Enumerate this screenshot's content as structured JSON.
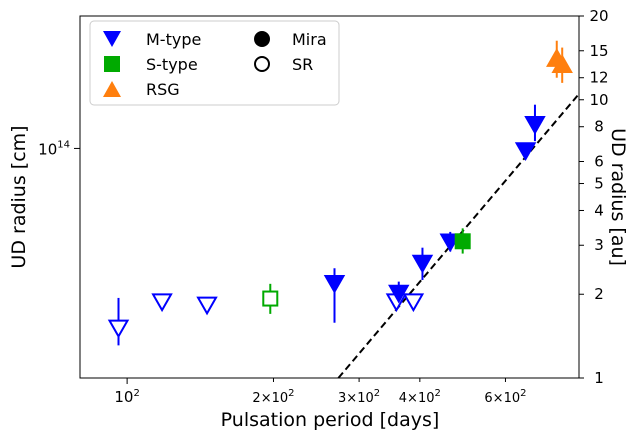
{
  "chart_data": {
    "type": "scatter",
    "xlabel": "Pulsation period [days]",
    "ylabel": "UD radius [cm]",
    "ylabel_right": "UD radius [au]",
    "x_scale": "log",
    "y_scale": "log",
    "xlim": [
      80,
      850
    ],
    "ylim_cm": [
      15000000000000.0,
      280000000000000.0
    ],
    "ylim_au": [
      1,
      20
    ],
    "au_in_cm": 14960000000000.0,
    "x_ticks": [
      {
        "value": 100,
        "base": "10",
        "exp": "2",
        "coef": ""
      },
      {
        "value": 200,
        "base": "10",
        "exp": "2",
        "coef": "2×"
      },
      {
        "value": 300,
        "base": "10",
        "exp": "2",
        "coef": "3×"
      },
      {
        "value": 400,
        "base": "10",
        "exp": "2",
        "coef": "4×"
      },
      {
        "value": 600,
        "base": "10",
        "exp": "2",
        "coef": "6×"
      }
    ],
    "y_ticks_left": [
      {
        "value": 100000000000000.0,
        "base": "10",
        "exp": "14"
      }
    ],
    "y_ticks_right": [
      {
        "value": 1,
        "label": "1"
      },
      {
        "value": 2,
        "label": "2"
      },
      {
        "value": 3,
        "label": "3"
      },
      {
        "value": 4,
        "label": "4"
      },
      {
        "value": 5,
        "label": "5"
      },
      {
        "value": 6,
        "label": "6"
      },
      {
        "value": 8,
        "label": "8"
      },
      {
        "value": 10,
        "label": "10"
      },
      {
        "value": 12,
        "label": "12"
      },
      {
        "value": 15,
        "label": "15"
      },
      {
        "value": 20,
        "label": "20"
      }
    ],
    "fit_line": {
      "style": "dashed",
      "color": "#000000",
      "points": [
        [
          272,
          1.0
        ],
        [
          850,
          10.5
        ]
      ]
    },
    "legend": {
      "position": "top-left",
      "entries": [
        {
          "label": "M-type",
          "marker": "triangle-down",
          "color": "#0000ff",
          "fill": true
        },
        {
          "label": "S-type",
          "marker": "square",
          "color": "#00aa00",
          "fill": true
        },
        {
          "label": "RSG",
          "marker": "triangle-up",
          "color": "#ff7f0e",
          "fill": true
        },
        {
          "label": "Mira",
          "marker": "circle",
          "color": "#000000",
          "fill": true
        },
        {
          "label": "SR",
          "marker": "circle",
          "color": "#000000",
          "fill": false
        }
      ]
    },
    "series": [
      {
        "name": "M-type",
        "marker": "triangle-down",
        "color": "#0000ff",
        "points": [
          {
            "x": 96,
            "y_au": 1.52,
            "err_lo": 1.31,
            "err_hi": 1.94,
            "filled": false
          },
          {
            "x": 118,
            "y_au": 1.89,
            "filled": false
          },
          {
            "x": 146,
            "y_au": 1.84,
            "filled": false
          },
          {
            "x": 267,
            "y_au": 2.2,
            "err_lo": 1.58,
            "err_hi": 2.48,
            "filled": true
          },
          {
            "x": 358,
            "y_au": 1.89,
            "filled": false
          },
          {
            "x": 362,
            "y_au": 2.03,
            "err_lo": 1.81,
            "err_hi": 2.22,
            "filled": true
          },
          {
            "x": 388,
            "y_au": 1.89,
            "filled": false
          },
          {
            "x": 405,
            "y_au": 2.6,
            "err_lo": 2.25,
            "err_hi": 2.94,
            "filled": true
          },
          {
            "x": 462,
            "y_au": 3.1,
            "err_lo": 2.85,
            "err_hi": 3.35,
            "filled": true
          },
          {
            "x": 660,
            "y_au": 6.6,
            "filled": true
          },
          {
            "x": 690,
            "y_au": 8.2,
            "err_lo": 7.1,
            "err_hi": 9.6,
            "filled": true
          }
        ]
      },
      {
        "name": "S-type",
        "marker": "square",
        "color": "#00aa00",
        "points": [
          {
            "x": 197,
            "y_au": 1.93,
            "err_lo": 1.7,
            "err_hi": 2.18,
            "filled": false
          },
          {
            "x": 490,
            "y_au": 3.1,
            "err_lo": 2.8,
            "err_hi": 3.45,
            "filled": true
          }
        ]
      },
      {
        "name": "RSG",
        "marker": "triangle-up",
        "color": "#ff7f0e",
        "points": [
          {
            "x": 765,
            "y_au": 14.0,
            "err_lo": 12.0,
            "err_hi": 16.3,
            "filled": true
          },
          {
            "x": 785,
            "y_au": 13.3,
            "err_lo": 11.5,
            "err_hi": 15.4,
            "filled": true
          }
        ]
      }
    ]
  }
}
